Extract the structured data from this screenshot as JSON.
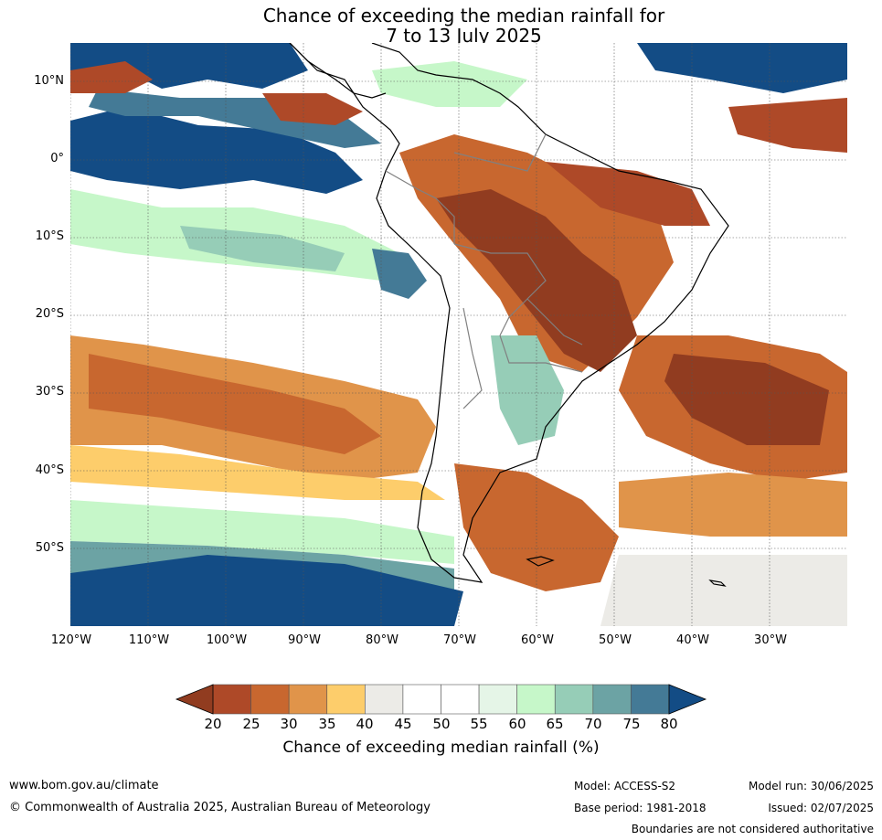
{
  "title": {
    "line1": "Chance of exceeding the median rainfall for",
    "line2": "7 to 13 July 2025"
  },
  "map": {
    "latitude_labels": [
      "10°N",
      "0°",
      "10°S",
      "20°S",
      "30°S",
      "40°S",
      "50°S"
    ],
    "longitude_labels": [
      "120°W",
      "110°W",
      "100°W",
      "90°W",
      "80°W",
      "70°W",
      "60°W",
      "50°W",
      "40°W",
      "30°W"
    ],
    "region": "South America",
    "colors": {
      "below_20": "#913c20",
      "20_25": "#ae4928",
      "25_30": "#c8672f",
      "30_35": "#e0944a",
      "35_40": "#fdcd6b",
      "40_45": "#ecebe7",
      "45_50": "#ffffff",
      "50_55": "#ffffff",
      "55_60": "#e5f5e7",
      "60_65": "#c6f7c9",
      "65_70": "#96cdb7",
      "70_75": "#6ca3a4",
      "75_80": "#447a96",
      "above_80": "#134c85"
    }
  },
  "colorbar": {
    "ticks": [
      "20",
      "25",
      "30",
      "35",
      "40",
      "45",
      "50",
      "55",
      "60",
      "65",
      "70",
      "75",
      "80"
    ],
    "colors": [
      "#ae4928",
      "#c8672f",
      "#e0944a",
      "#fdcd6b",
      "#ecebe7",
      "#ffffff",
      "#ffffff",
      "#e5f5e7",
      "#c6f7c9",
      "#96cdb7",
      "#6ca3a4",
      "#447a96"
    ],
    "under_color": "#913c20",
    "over_color": "#134c85",
    "label": "Chance of exceeding median rainfall (%)"
  },
  "footer": {
    "website": "www.bom.gov.au/climate",
    "copyright": "© Commonwealth of Australia 2025, Australian Bureau of Meteorology",
    "model": "Model: ACCESS-S2",
    "base_period": "Base period: 1981-2018",
    "model_run": "Model run: 30/06/2025",
    "issued": "Issued: 02/07/2025",
    "disclaimer": "Boundaries are not considered authoritative"
  }
}
